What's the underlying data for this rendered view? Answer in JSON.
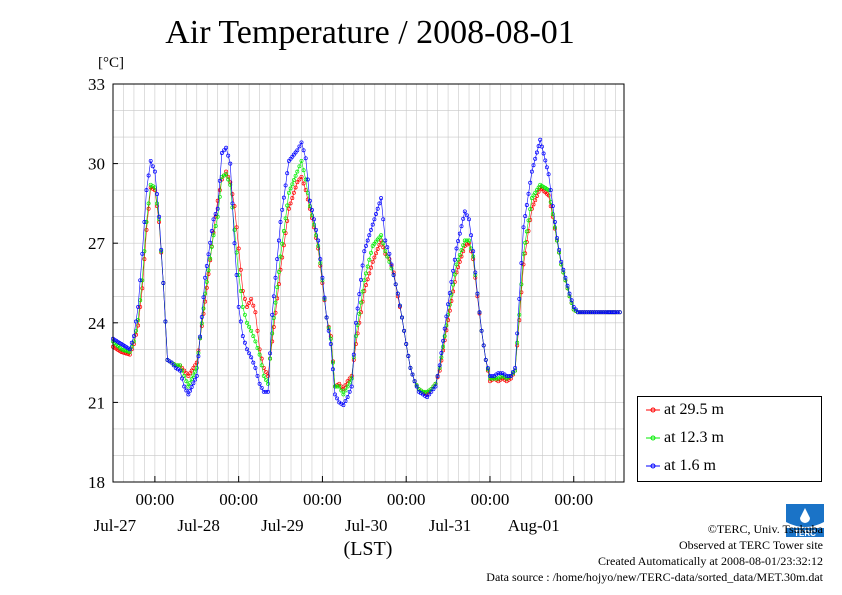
{
  "chart_data": {
    "type": "line",
    "title": "Air Temperature / 2008-08-01",
    "ylabel": "[°C]",
    "xlabel": "(LST)",
    "ylim": [
      18,
      33
    ],
    "yticks": [
      "18",
      "21",
      "24",
      "27",
      "30",
      "33"
    ],
    "xticks": [
      {
        "time": "00:00",
        "date": "Jul-27"
      },
      {
        "time": "00:00",
        "date": "Jul-28"
      },
      {
        "time": "00:00",
        "date": "Jul-29"
      },
      {
        "time": "00:00",
        "date": "Jul-30"
      },
      {
        "time": "00:00",
        "date": "Jul-31"
      },
      {
        "time": "00:00",
        "date": "Aug-01"
      }
    ],
    "grid": true,
    "legend_position": "right-bottom",
    "x_days_start": "2008-07-26 12:00",
    "x": [
      0,
      0.1,
      0.2,
      0.25,
      0.3,
      0.35,
      0.4,
      0.45,
      0.5,
      0.55,
      0.6,
      0.65,
      0.7,
      0.75,
      0.8,
      0.85,
      0.9,
      1.0,
      1.1,
      1.2,
      1.25,
      1.3,
      1.35,
      1.4,
      1.45,
      1.5,
      1.55,
      1.6,
      1.65,
      1.7,
      1.75,
      1.8,
      1.85,
      1.9,
      2.0,
      2.1,
      2.2,
      2.25,
      2.3,
      2.35,
      2.4,
      2.45,
      2.5,
      2.55,
      2.6,
      2.65,
      2.7,
      2.75,
      2.8,
      2.85,
      2.9,
      3.0,
      3.1,
      3.2,
      3.25,
      3.3,
      3.35,
      3.4,
      3.45,
      3.5,
      3.55,
      3.6,
      3.65,
      3.7,
      3.75,
      3.8,
      3.85,
      3.9,
      4.0,
      4.1,
      4.2,
      4.25,
      4.3,
      4.35,
      4.4,
      4.45,
      4.5,
      4.55,
      4.6,
      4.65,
      4.7,
      4.75,
      4.8,
      4.85,
      4.9,
      5.0,
      5.1,
      5.2,
      5.25,
      5.3,
      5.35,
      5.4,
      5.45,
      5.5,
      5.55,
      5.6,
      5.65,
      5.7,
      5.75,
      5.8,
      5.85,
      5.9,
      6.0,
      6.05
    ],
    "series": [
      {
        "name": "at 29.5 m",
        "color": "#ff0000",
        "values": [
          23.1,
          22.9,
          22.8,
          23.2,
          23.9,
          25.3,
          27.5,
          29.1,
          29.0,
          27.8,
          25.5,
          22.6,
          22.5,
          22.4,
          22.4,
          22.2,
          22.0,
          22.5,
          24.8,
          27.4,
          28.6,
          29.4,
          29.7,
          29.3,
          28.4,
          26.8,
          25.2,
          24.6,
          24.9,
          24.4,
          23.0,
          22.3,
          22.0,
          23.3,
          26.0,
          28.3,
          29.3,
          29.5,
          29.0,
          28.3,
          27.6,
          26.8,
          25.5,
          24.2,
          23.5,
          21.6,
          21.7,
          21.5,
          21.8,
          22.0,
          23.2,
          25.2,
          26.3,
          27.1,
          26.6,
          26.4,
          25.9,
          25.0,
          24.2,
          23.2,
          22.3,
          21.8,
          21.5,
          21.4,
          21.3,
          21.5,
          21.7,
          22.2,
          24.1,
          25.9,
          26.9,
          27.0,
          26.4,
          25.0,
          23.7,
          22.6,
          21.8,
          21.9,
          21.8,
          21.9,
          21.8,
          21.9,
          22.2,
          24.1,
          26.2,
          28.3,
          29.1,
          28.8,
          28.0,
          27.1,
          26.2,
          25.6,
          25.0,
          24.5,
          24.4,
          24.4,
          24.4,
          24.4,
          24.4,
          24.4,
          24.4,
          24.4,
          24.4,
          24.4
        ]
      },
      {
        "name": "at 12.3 m",
        "color": "#00ee00",
        "values": [
          23.3,
          23.0,
          22.9,
          23.3,
          24.1,
          25.6,
          27.8,
          29.2,
          29.1,
          27.9,
          25.5,
          22.6,
          22.5,
          22.4,
          22.4,
          22.0,
          21.6,
          22.3,
          25.1,
          27.3,
          28.0,
          29.5,
          29.6,
          29.2,
          27.5,
          25.8,
          24.6,
          24.0,
          23.7,
          23.3,
          22.8,
          22.0,
          21.7,
          23.6,
          26.5,
          28.9,
          29.7,
          30.1,
          29.4,
          28.4,
          27.7,
          26.9,
          25.6,
          24.2,
          23.4,
          21.6,
          21.6,
          21.3,
          21.6,
          21.9,
          23.5,
          25.6,
          26.9,
          27.3,
          26.7,
          26.3,
          25.8,
          25.1,
          24.2,
          23.2,
          22.3,
          21.8,
          21.5,
          21.4,
          21.4,
          21.5,
          21.7,
          22.3,
          24.3,
          26.2,
          27.1,
          27.1,
          26.5,
          25.1,
          23.7,
          22.6,
          21.9,
          21.9,
          21.9,
          22.0,
          21.9,
          22.0,
          22.2,
          24.3,
          26.6,
          28.7,
          29.2,
          29.0,
          28.1,
          27.1,
          26.2,
          25.6,
          25.0,
          24.5,
          24.4,
          24.4,
          24.4,
          24.4,
          24.4,
          24.4,
          24.4,
          24.4,
          24.4,
          24.4
        ]
      },
      {
        "name": "at 1.6 m",
        "color": "#0000ff",
        "values": [
          23.4,
          23.2,
          23.0,
          23.5,
          24.6,
          26.6,
          29.0,
          30.1,
          29.7,
          28.0,
          25.5,
          22.6,
          22.5,
          22.3,
          22.2,
          21.6,
          21.3,
          22.0,
          25.7,
          27.9,
          28.3,
          30.4,
          30.6,
          30.0,
          27.0,
          24.6,
          23.5,
          23.0,
          22.7,
          22.3,
          21.7,
          21.4,
          21.4,
          24.3,
          27.8,
          30.1,
          30.5,
          30.8,
          30.2,
          28.6,
          27.9,
          27.1,
          25.7,
          24.2,
          23.2,
          21.3,
          21.0,
          20.9,
          21.2,
          21.6,
          24.0,
          26.7,
          27.7,
          28.7,
          27.1,
          26.6,
          25.8,
          25.1,
          24.2,
          23.2,
          22.3,
          21.8,
          21.4,
          21.3,
          21.2,
          21.4,
          21.6,
          22.4,
          24.7,
          26.8,
          28.2,
          27.9,
          26.7,
          25.1,
          23.7,
          22.6,
          22.0,
          22.0,
          22.1,
          22.1,
          22.0,
          22.0,
          22.3,
          24.9,
          27.6,
          29.7,
          30.9,
          29.6,
          28.4,
          27.2,
          26.3,
          25.7,
          25.1,
          24.6,
          24.4,
          24.4,
          24.4,
          24.4,
          24.4,
          24.4,
          24.4,
          24.4,
          24.4,
          24.4
        ]
      }
    ]
  },
  "legend": [
    {
      "label": "at 29.5 m",
      "color": "#ff0000"
    },
    {
      "label": "at 12.3 m",
      "color": "#00ee00"
    },
    {
      "label": "at 1.6 m",
      "color": "#0000ff"
    }
  ],
  "credits": {
    "copyright": "©TERC, Univ. Tsukuba",
    "observed": "Observed at TERC Tower site",
    "created": "Created Automatically at 2008-08-01/23:32:12",
    "source": "Data source : /home/hojyo/new/TERC-data/sorted_data/MET.30m.dat"
  },
  "logo_text": "TERC"
}
